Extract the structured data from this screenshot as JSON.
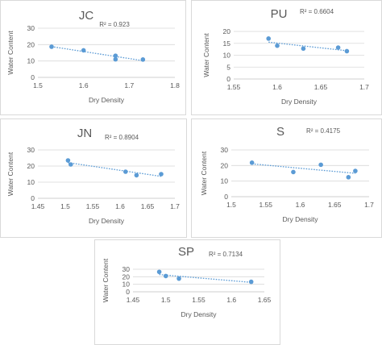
{
  "chart_data": [
    {
      "type": "scatter",
      "title": "JC",
      "r2": "R² = 0.923",
      "xlabel": "Dry Density",
      "ylabel": "Water Content",
      "xlim": [
        1.5,
        1.8
      ],
      "ylim": [
        0,
        30
      ],
      "xticks": [
        "1.5",
        "1.6",
        "1.7",
        "1.8"
      ],
      "yticks": [
        "0",
        "10",
        "20",
        "30"
      ],
      "trendline": "linear",
      "points": [
        {
          "x": 1.53,
          "y": 18.7
        },
        {
          "x": 1.6,
          "y": 16.5
        },
        {
          "x": 1.67,
          "y": 13.2
        },
        {
          "x": 1.67,
          "y": 11.0
        },
        {
          "x": 1.73,
          "y": 10.9
        }
      ]
    },
    {
      "type": "scatter",
      "title": "PU",
      "r2": "R² = 0.6604",
      "xlabel": "Dry Density",
      "ylabel": "Water Content",
      "xlim": [
        1.55,
        1.7
      ],
      "ylim": [
        0,
        20
      ],
      "xticks": [
        "1.55",
        "1.6",
        "1.65",
        "1.7"
      ],
      "yticks": [
        "0",
        "5",
        "10",
        "15",
        "20"
      ],
      "trendline": "linear",
      "points": [
        {
          "x": 1.59,
          "y": 17.0
        },
        {
          "x": 1.6,
          "y": 14.0
        },
        {
          "x": 1.63,
          "y": 12.8
        },
        {
          "x": 1.67,
          "y": 13.2
        },
        {
          "x": 1.68,
          "y": 11.7
        }
      ]
    },
    {
      "type": "scatter",
      "title": "JN",
      "r2": "R² = 0.8904",
      "xlabel": "Dry Density",
      "ylabel": "Water Content",
      "xlim": [
        1.45,
        1.7
      ],
      "ylim": [
        0,
        30
      ],
      "xticks": [
        "1.45",
        "1.5",
        "1.55",
        "1.6",
        "1.65",
        "1.7"
      ],
      "yticks": [
        "0",
        "10",
        "20",
        "30"
      ],
      "trendline": "linear",
      "points": [
        {
          "x": 1.505,
          "y": 23.5
        },
        {
          "x": 1.51,
          "y": 21.0
        },
        {
          "x": 1.61,
          "y": 16.5
        },
        {
          "x": 1.63,
          "y": 14.3
        },
        {
          "x": 1.675,
          "y": 15.0
        }
      ]
    },
    {
      "type": "scatter",
      "title": "S",
      "r2": "R² = 0.4175",
      "xlabel": "Dry Density",
      "ylabel": "Water Content",
      "xlim": [
        1.5,
        1.7
      ],
      "ylim": [
        0,
        30
      ],
      "xticks": [
        "1.5",
        "1.55",
        "1.6",
        "1.65",
        "1.7"
      ],
      "yticks": [
        "0",
        "10",
        "20",
        "30"
      ],
      "trendline": "linear",
      "points": [
        {
          "x": 1.53,
          "y": 21.8
        },
        {
          "x": 1.59,
          "y": 15.8
        },
        {
          "x": 1.63,
          "y": 20.5
        },
        {
          "x": 1.67,
          "y": 12.5
        },
        {
          "x": 1.68,
          "y": 16.5
        }
      ]
    },
    {
      "type": "scatter",
      "title": "SP",
      "r2": "R² = 0.7134",
      "xlabel": "Dry Density",
      "ylabel": "Water Content",
      "xlim": [
        1.45,
        1.65
      ],
      "ylim": [
        0,
        30
      ],
      "xticks": [
        "1.45",
        "1.5",
        "1.55",
        "1.6",
        "1.65"
      ],
      "yticks": [
        "0",
        "10",
        "20",
        "30"
      ],
      "trendline": "linear",
      "points": [
        {
          "x": 1.49,
          "y": 26.5
        },
        {
          "x": 1.5,
          "y": 21.0
        },
        {
          "x": 1.52,
          "y": 17.5
        },
        {
          "x": 1.63,
          "y": 13.3
        }
      ]
    }
  ],
  "colors": {
    "marker": "#5b9bd5",
    "trendline": "#5b9bd5",
    "gridline": "#d9d9d9",
    "text": "#595959",
    "border": "#d9d9d9"
  }
}
